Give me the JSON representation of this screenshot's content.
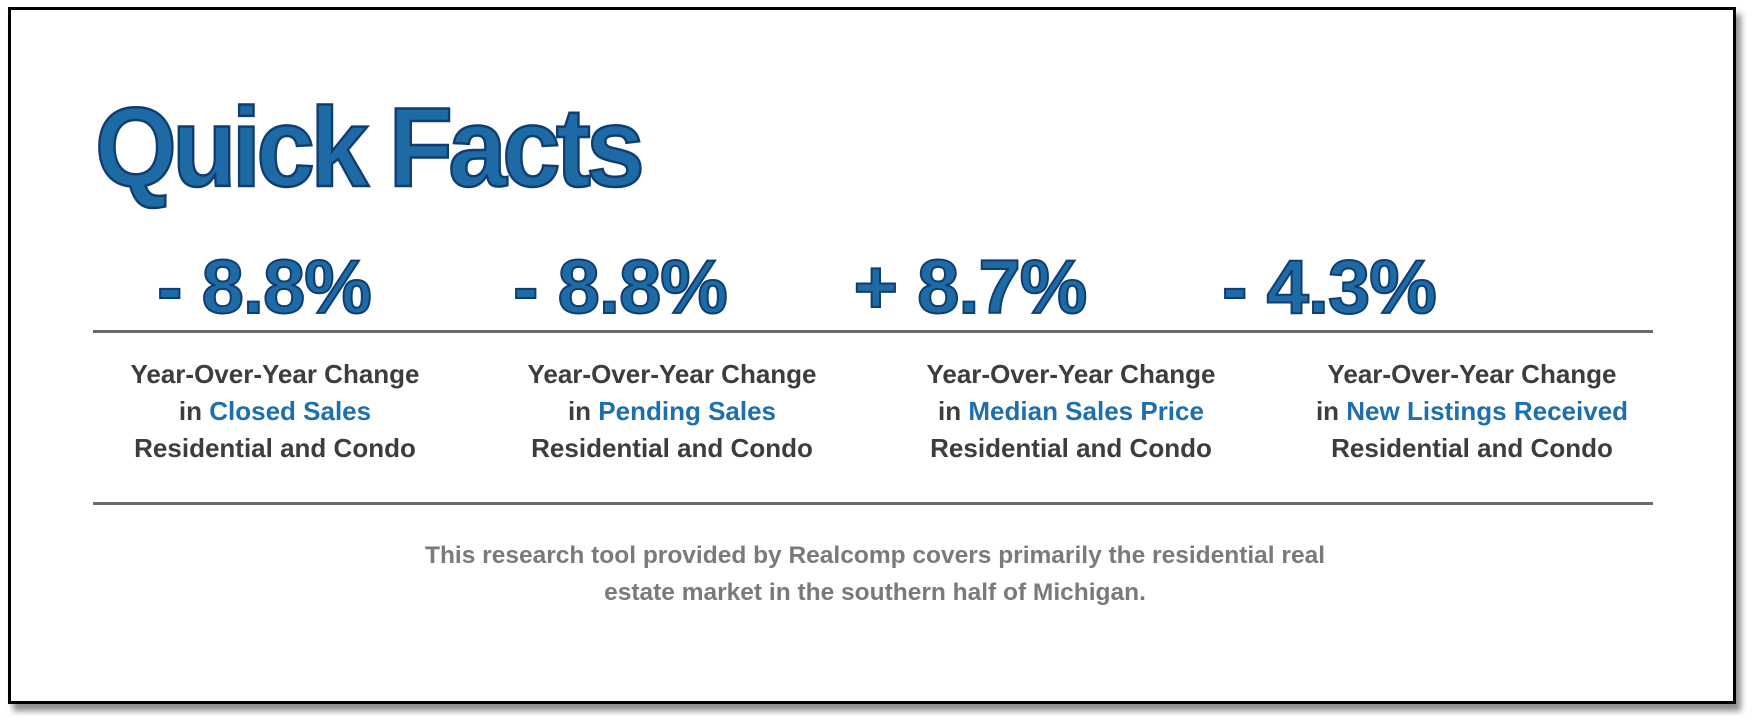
{
  "title": "Quick Facts",
  "facts": [
    {
      "value": "- 8.8%",
      "line1": "Year-Over-Year Change",
      "prefix": "in ",
      "metric": "Closed Sales",
      "line3": "Residential and Condo"
    },
    {
      "value": "- 8.8%",
      "line1": "Year-Over-Year Change",
      "prefix": "in ",
      "metric": "Pending Sales",
      "line3": "Residential and Condo"
    },
    {
      "value": "+ 8.7%",
      "line1": "Year-Over-Year Change",
      "prefix": "in ",
      "metric": "Median Sales Price",
      "line3": "Residential and Condo"
    },
    {
      "value": "- 4.3%",
      "line1": "Year-Over-Year Change",
      "prefix": "in ",
      "metric": "New Listings Received",
      "line3": "Residential and Condo"
    }
  ],
  "footnote": {
    "line1": "This research tool provided by Realcomp covers primarily the residential real",
    "line2": "estate market in the southern half of Michigan."
  },
  "colors": {
    "accent": "#1e6aa4",
    "accent_outline": "#0f3d72",
    "highlight_text": "#1d6fae",
    "body_text": "#3d3d3d",
    "footnote_text": "#7a7a7a",
    "rule": "#6a6a6a"
  }
}
